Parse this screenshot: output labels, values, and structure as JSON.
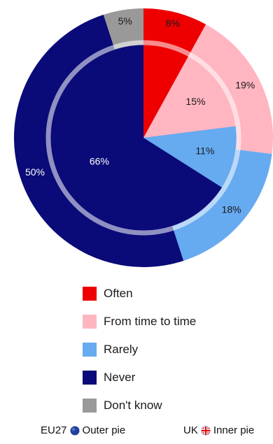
{
  "chart_data": {
    "type": "pie",
    "categories": [
      "Often",
      "From time to time",
      "Rarely",
      "Never",
      "Don't know"
    ],
    "colors": [
      "#ee0000",
      "#ffb6c1",
      "#66aaf0",
      "#0a0a78",
      "#999999"
    ],
    "series": [
      {
        "values": [
          8,
          19,
          18,
          50,
          5
        ],
        "labels": [
          "8%",
          "19%",
          "18%",
          "50%",
          "5%"
        ]
      },
      {
        "values": [
          8,
          15,
          11,
          66,
          0
        ],
        "labels": [
          "",
          "15%",
          "11%",
          "66%",
          ""
        ]
      }
    ],
    "legend_position": "bottom"
  },
  "legend": [
    {
      "label": "Often",
      "color": "#ee0000"
    },
    {
      "label": "From time to time",
      "color": "#ffb6c1"
    },
    {
      "label": "Rarely",
      "color": "#66aaf0"
    },
    {
      "label": "Never",
      "color": "#0a0a78"
    },
    {
      "label": "Don't know",
      "color": "#999999"
    }
  ],
  "footer": {
    "eu_label": "EU27",
    "eu_suffix": "Outer pie",
    "eu_icon": "eu-flag-icon",
    "uk_label": "UK",
    "uk_suffix": "Inner pie",
    "uk_icon": "uk-flag-icon"
  }
}
